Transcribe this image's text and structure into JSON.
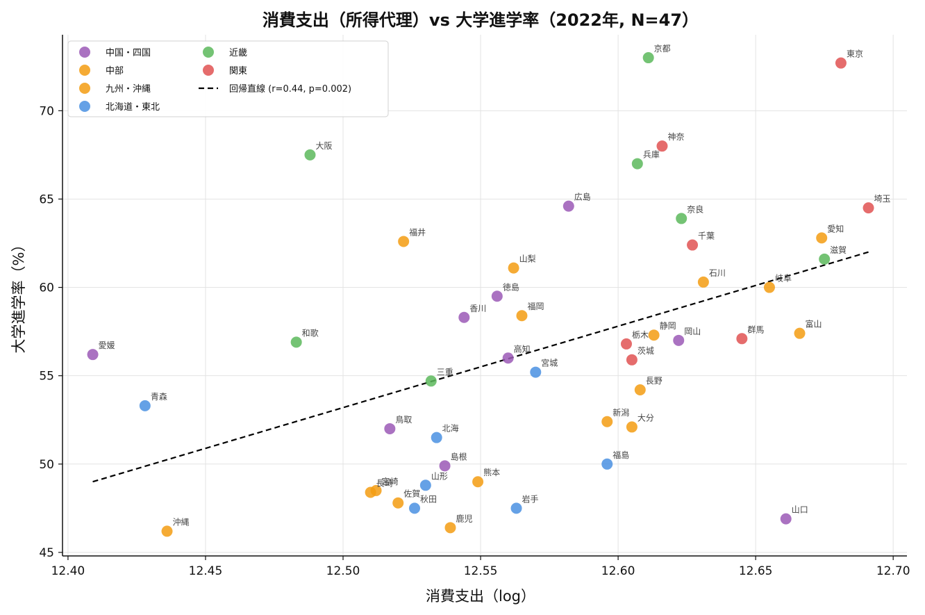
{
  "chart_data": {
    "type": "scatter",
    "title": "消費支出（所得代理）vs 大学進学率（2022年, N=47）",
    "xlabel": "消費支出（log）",
    "ylabel": "大学進学率（%）",
    "xlim": [
      12.398,
      12.705
    ],
    "ylim": [
      44.8,
      74.3
    ],
    "xticks": [
      "12.40",
      "12.45",
      "12.50",
      "12.55",
      "12.60",
      "12.65",
      "12.70"
    ],
    "yticks": [
      "45",
      "50",
      "55",
      "60",
      "65",
      "70"
    ],
    "grid": true,
    "legend_position": "top-left",
    "regression": {
      "label": "回帰直線 (r=0.44, p=0.002)",
      "x": [
        12.409,
        12.691
      ],
      "y": [
        49.0,
        62.0
      ],
      "color": "#000000"
    },
    "series": [
      {
        "name": "中国・四国",
        "color": "#9b59b6",
        "points": [
          {
            "label": "広島",
            "x": 12.582,
            "y": 64.6
          },
          {
            "label": "徳島",
            "x": 12.556,
            "y": 59.5
          },
          {
            "label": "香川",
            "x": 12.544,
            "y": 58.3
          },
          {
            "label": "高知",
            "x": 12.56,
            "y": 56.0
          },
          {
            "label": "岡山",
            "x": 12.622,
            "y": 57.0
          },
          {
            "label": "愛媛",
            "x": 12.409,
            "y": 56.2
          },
          {
            "label": "鳥取",
            "x": 12.517,
            "y": 52.0
          },
          {
            "label": "島根",
            "x": 12.537,
            "y": 49.9
          },
          {
            "label": "山口",
            "x": 12.661,
            "y": 46.9
          }
        ]
      },
      {
        "name": "中部",
        "color": "#f39c12",
        "points": [
          {
            "label": "福井",
            "x": 12.522,
            "y": 62.6
          },
          {
            "label": "山梨",
            "x": 12.562,
            "y": 61.1
          },
          {
            "label": "愛知",
            "x": 12.674,
            "y": 62.8
          },
          {
            "label": "石川",
            "x": 12.631,
            "y": 60.3
          },
          {
            "label": "岐阜",
            "x": 12.655,
            "y": 60.0
          },
          {
            "label": "静岡",
            "x": 12.613,
            "y": 57.3
          },
          {
            "label": "富山",
            "x": 12.666,
            "y": 57.4
          },
          {
            "label": "長野",
            "x": 12.608,
            "y": 54.2
          },
          {
            "label": "新潟",
            "x": 12.596,
            "y": 52.4
          }
        ]
      },
      {
        "name": "九州・沖縄",
        "color": "#f39c12",
        "points": [
          {
            "label": "福岡",
            "x": 12.565,
            "y": 58.4
          },
          {
            "label": "大分",
            "x": 12.605,
            "y": 52.1
          },
          {
            "label": "熊本",
            "x": 12.549,
            "y": 49.0
          },
          {
            "label": "宮崎",
            "x": 12.512,
            "y": 48.5
          },
          {
            "label": "長崎",
            "x": 12.51,
            "y": 48.4
          },
          {
            "label": "佐賀",
            "x": 12.52,
            "y": 47.8
          },
          {
            "label": "鹿児",
            "x": 12.539,
            "y": 46.4
          },
          {
            "label": "沖縄",
            "x": 12.436,
            "y": 46.2
          }
        ]
      },
      {
        "name": "北海道・東北",
        "color": "#4a90e2",
        "points": [
          {
            "label": "宮城",
            "x": 12.57,
            "y": 55.2
          },
          {
            "label": "青森",
            "x": 12.428,
            "y": 53.3
          },
          {
            "label": "北海",
            "x": 12.534,
            "y": 51.5
          },
          {
            "label": "福島",
            "x": 12.596,
            "y": 50.0
          },
          {
            "label": "山形",
            "x": 12.53,
            "y": 48.8
          },
          {
            "label": "秋田",
            "x": 12.526,
            "y": 47.5
          },
          {
            "label": "岩手",
            "x": 12.563,
            "y": 47.5
          }
        ]
      },
      {
        "name": "近畿",
        "color": "#5cb85c",
        "points": [
          {
            "label": "京都",
            "x": 12.611,
            "y": 73.0
          },
          {
            "label": "大阪",
            "x": 12.488,
            "y": 67.5
          },
          {
            "label": "兵庫",
            "x": 12.607,
            "y": 67.0
          },
          {
            "label": "奈良",
            "x": 12.623,
            "y": 63.9
          },
          {
            "label": "滋賀",
            "x": 12.675,
            "y": 61.6
          },
          {
            "label": "和歌",
            "x": 12.483,
            "y": 56.9
          },
          {
            "label": "三重",
            "x": 12.532,
            "y": 54.7
          }
        ]
      },
      {
        "name": "関東",
        "color": "#e05252",
        "points": [
          {
            "label": "東京",
            "x": 12.681,
            "y": 72.7
          },
          {
            "label": "神奈",
            "x": 12.616,
            "y": 68.0
          },
          {
            "label": "埼玉",
            "x": 12.691,
            "y": 64.5
          },
          {
            "label": "千葉",
            "x": 12.627,
            "y": 62.4
          },
          {
            "label": "栃木",
            "x": 12.603,
            "y": 56.8
          },
          {
            "label": "茨城",
            "x": 12.605,
            "y": 55.9
          },
          {
            "label": "群馬",
            "x": 12.645,
            "y": 57.1
          }
        ]
      }
    ]
  }
}
